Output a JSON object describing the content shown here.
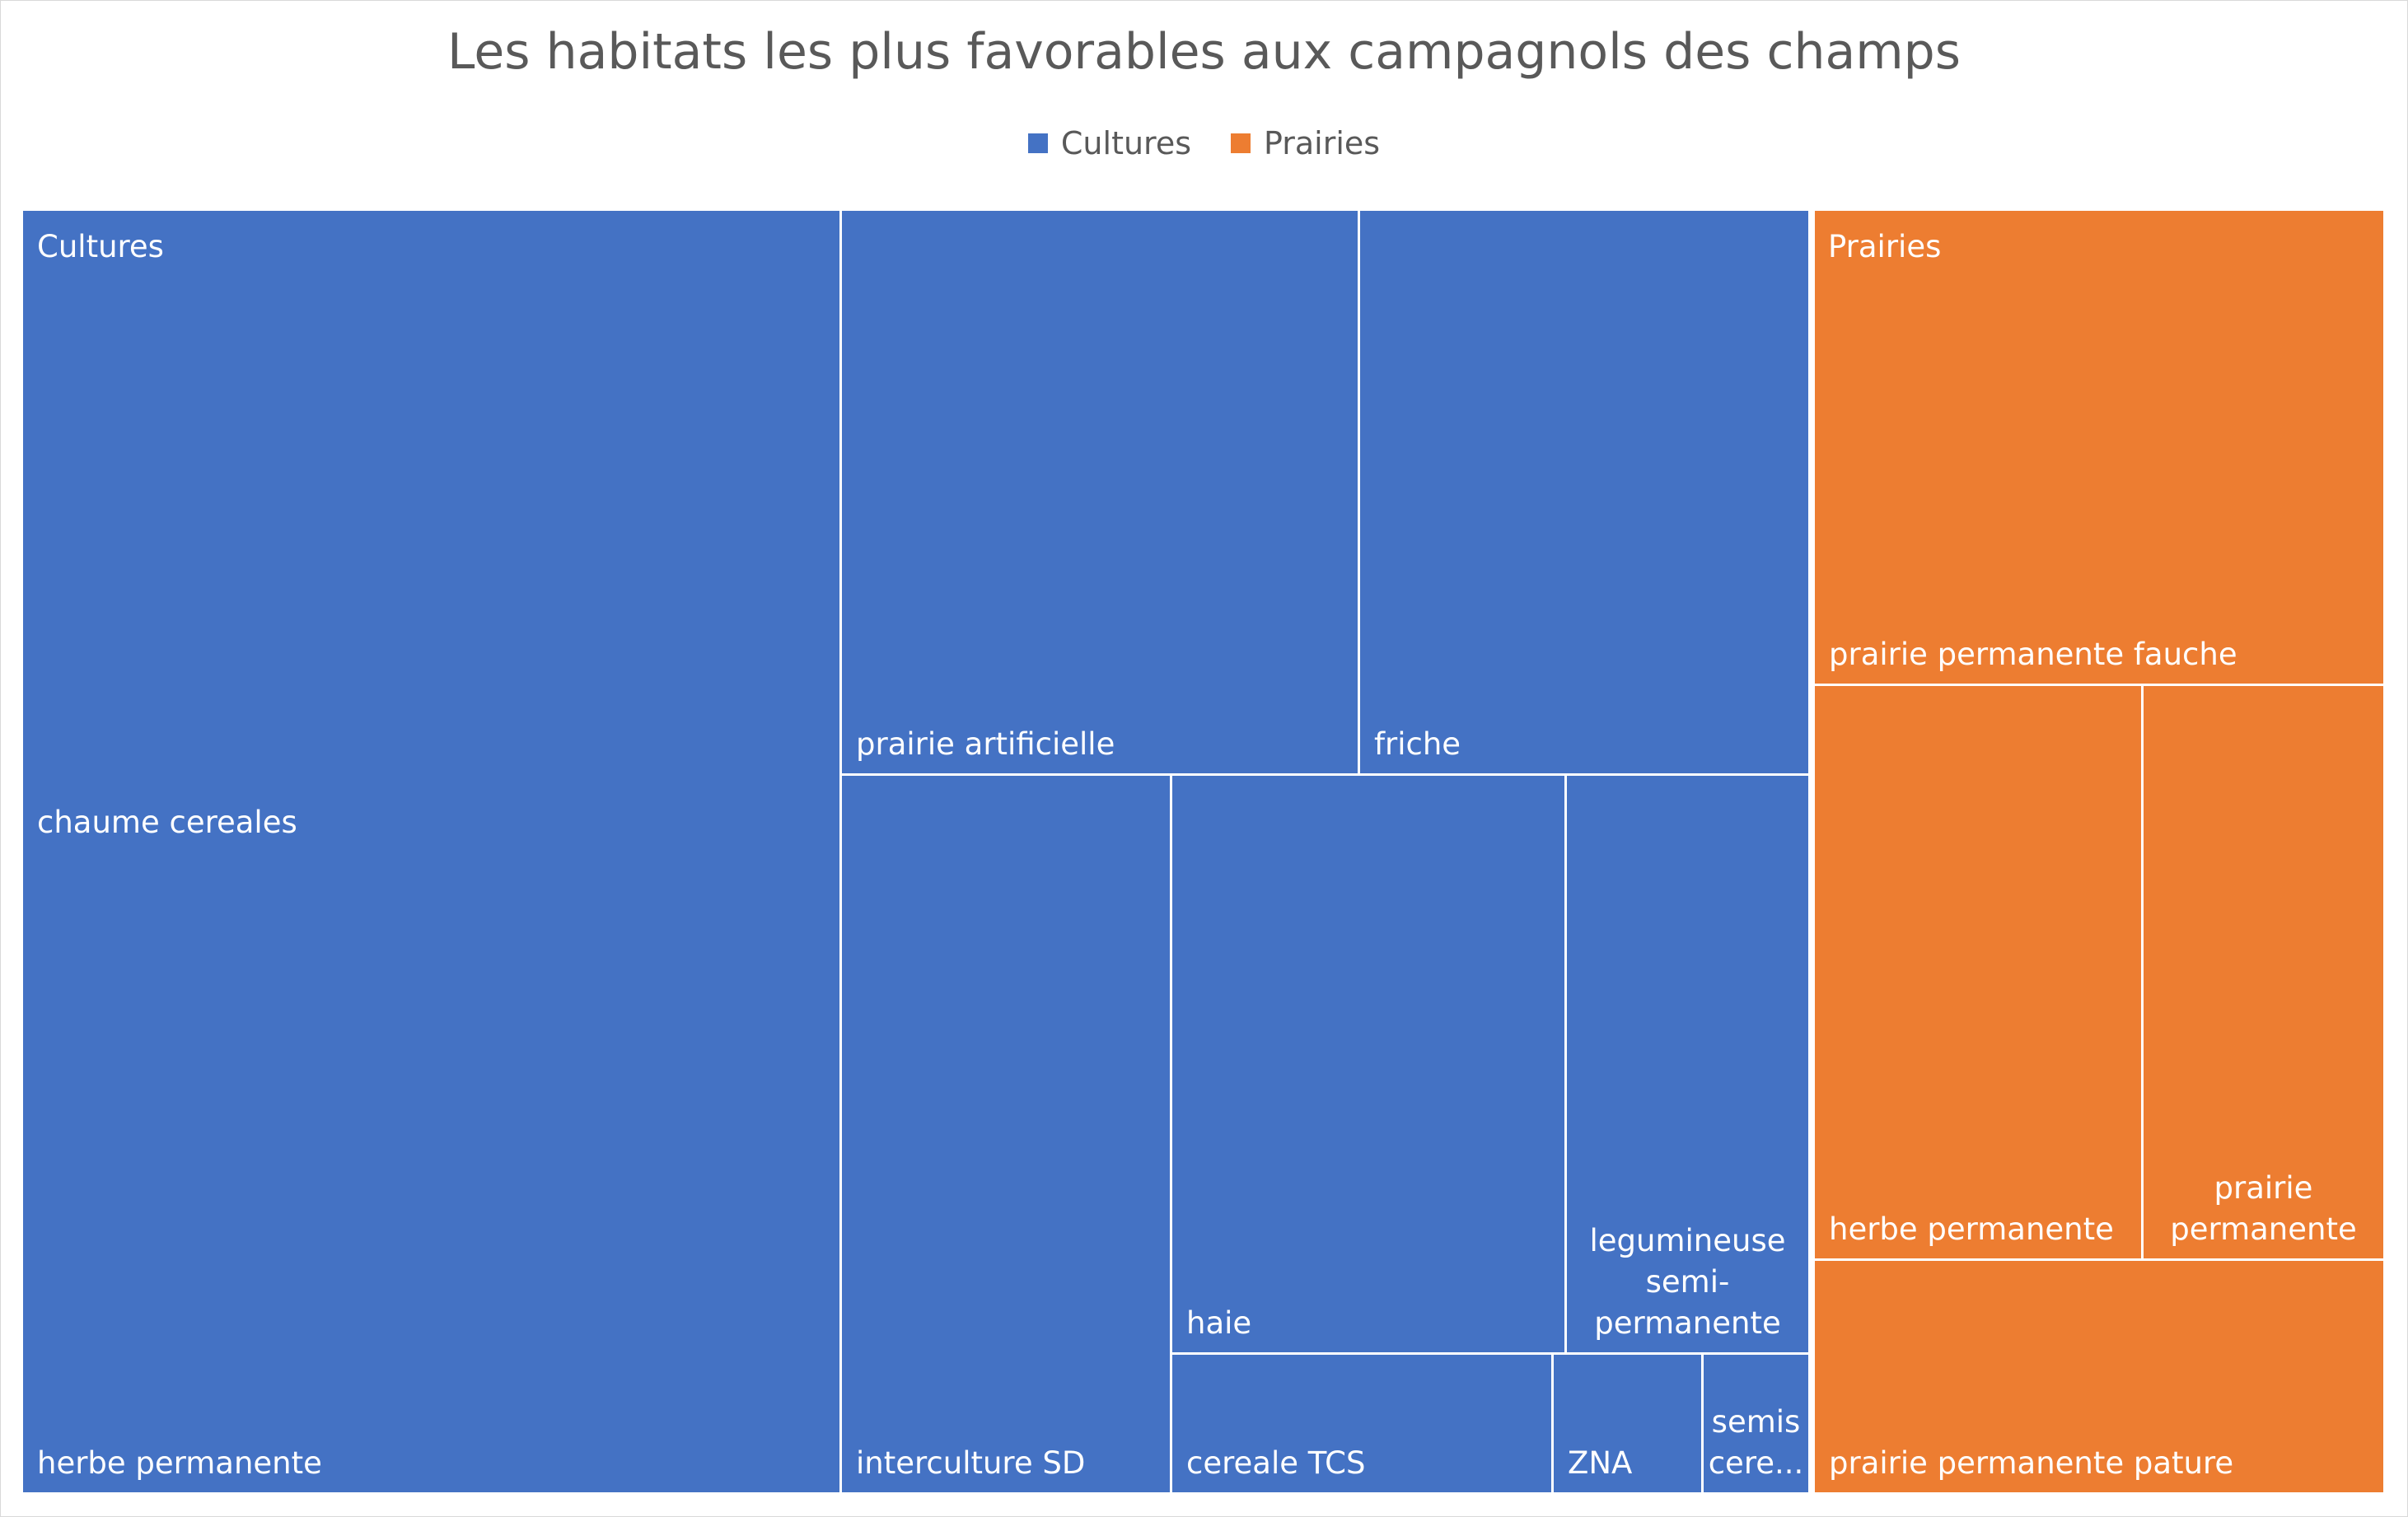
{
  "chart_data": {
    "type": "treemap",
    "title": "Les habitats les plus favorables aux campagnols des champs",
    "legend_position": "top",
    "colors": {
      "Cultures": "#4472C4",
      "Prairies": "#ED7D31"
    },
    "legend": [
      "Cultures",
      "Prairies"
    ],
    "groups": [
      {
        "name": "Cultures",
        "items": [
          {
            "name": "chaume cereales",
            "value": 22,
            "label": "chaume cereales"
          },
          {
            "name": "herbe permanente",
            "value": 22,
            "label": "herbe permanente"
          },
          {
            "name": "prairie artificielle",
            "value": 12,
            "label": "prairie artificielle"
          },
          {
            "name": "friche",
            "value": 10.5,
            "label": "friche"
          },
          {
            "name": "interculture SD",
            "value": 8.5,
            "label": "interculture SD"
          },
          {
            "name": "haie",
            "value": 8,
            "label": "haie"
          },
          {
            "name": "legumineuse semi-permanente",
            "value": 4.5,
            "label": "legumineuse semi-permanente"
          },
          {
            "name": "cereale TCS",
            "value": 2,
            "label": "cereale TCS"
          },
          {
            "name": "ZNA",
            "value": 0.75,
            "label": "ZNA"
          },
          {
            "name": "semis cereales",
            "value": 0.55,
            "label": "semis cere..."
          }
        ]
      },
      {
        "name": "Prairies",
        "items": [
          {
            "name": "prairie permanente fauche",
            "value": 8,
            "label": "prairie permanente fauche"
          },
          {
            "name": "herbe permanente",
            "value": 4.5,
            "label": "herbe permanente"
          },
          {
            "name": "prairie permanente",
            "value": 3.5,
            "label": "prairie permanente"
          },
          {
            "name": "prairie permanente pature",
            "value": 4,
            "label": "prairie permanente pature"
          }
        ]
      }
    ]
  }
}
